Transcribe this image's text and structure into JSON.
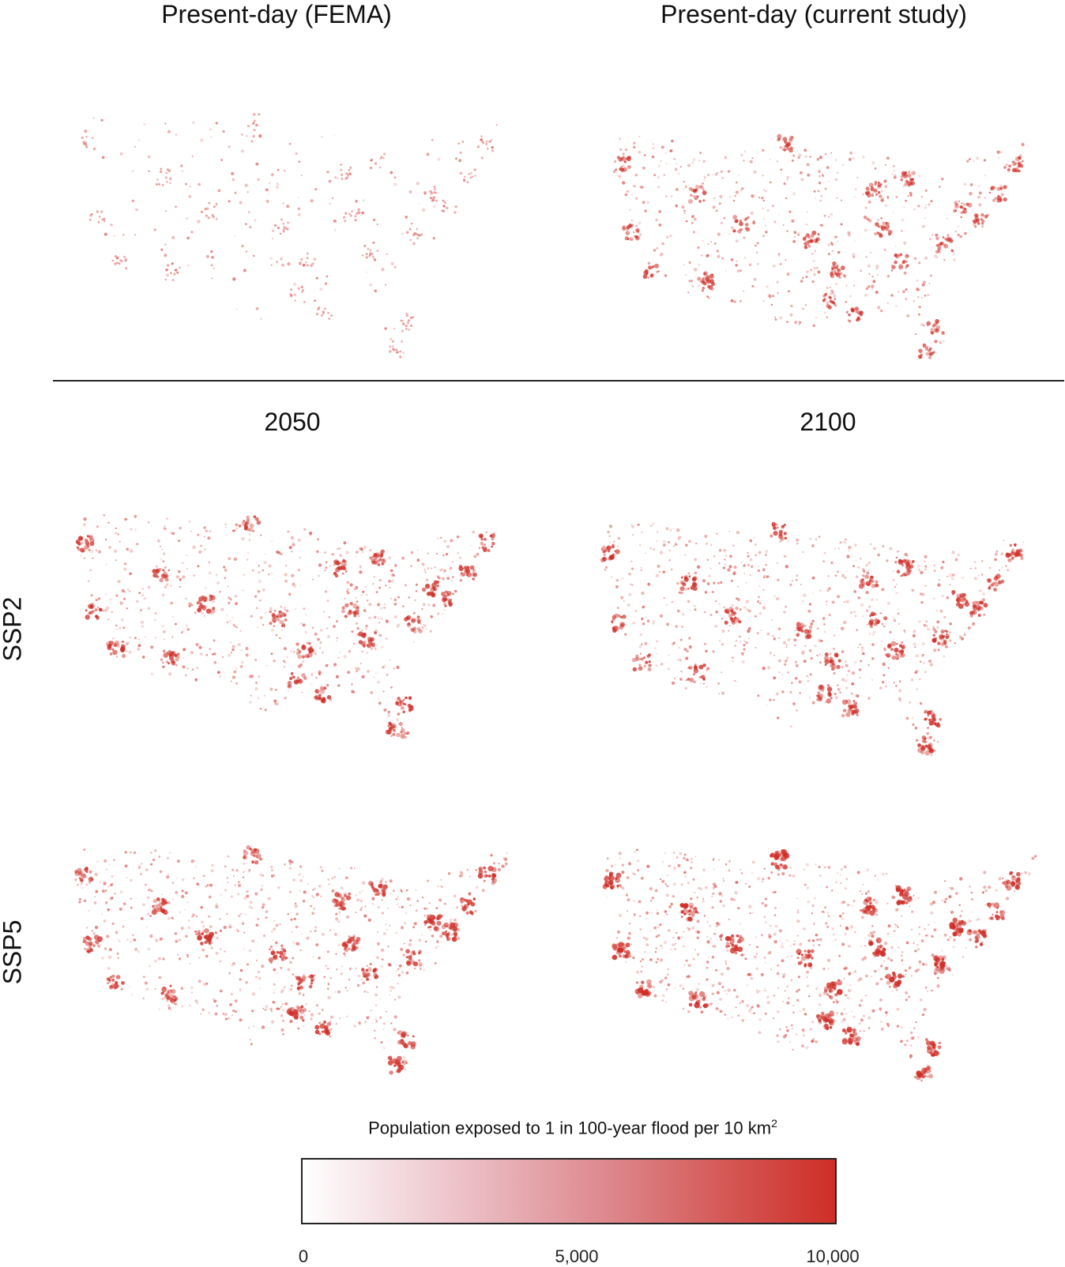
{
  "panels": {
    "top_left_title": "Present-day (FEMA)",
    "top_right_title": "Present-day (current study)",
    "col_2050": "2050",
    "col_2100": "2100",
    "row_ssp2": "SSP2",
    "row_ssp5": "SSP5"
  },
  "legend": {
    "title": "Population exposed to 1 in 100-year flood per 10 km",
    "title_superscript": "2",
    "ticks": [
      "0",
      "5,000",
      "10,000"
    ],
    "range": [
      0,
      10000
    ],
    "color_low": "#ffffff",
    "color_high": "#cf2e27"
  },
  "colors": {
    "accent": "#cf2e27",
    "divider": "#222222"
  }
}
